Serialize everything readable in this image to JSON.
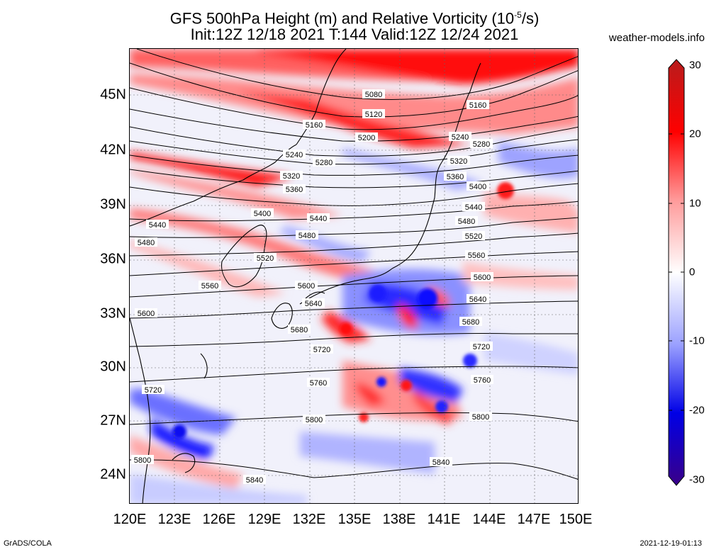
{
  "title": {
    "main": "GFS 500hPa Height (m) and Relative Vorticity (10",
    "exp": "-5",
    "unit": "/s)",
    "line2": "Init:12Z 12/18 2021 T:144 Valid:12Z 12/24 2021"
  },
  "brand": "weather-models.info",
  "footer": {
    "left": "GrADS/COLA",
    "right": "2021-12-19-01:13"
  },
  "lat_labels": [
    "45N",
    "42N",
    "39N",
    "36N",
    "33N",
    "30N",
    "27N",
    "24N"
  ],
  "lon_labels": [
    "120E",
    "123E",
    "126E",
    "129E",
    "132E",
    "135E",
    "138E",
    "141E",
    "144E",
    "147E",
    "150E"
  ],
  "colorbar": {
    "labels": [
      "30",
      "20",
      "10",
      "0",
      "-10",
      "-20",
      "-30"
    ],
    "colors": [
      "#b81c1c",
      "#ff0000",
      "#ff9a9a",
      "#ffffff",
      "#9aa0ff",
      "#0000e6",
      "#3a0088"
    ]
  },
  "contours": [
    {
      "label": "5080",
      "at": [
        [
          526,
          132
        ]
      ]
    },
    {
      "label": "5120",
      "at": [
        [
          526,
          160
        ]
      ]
    },
    {
      "label": "5160",
      "at": [
        [
          442,
          175
        ],
        [
          673,
          147
        ]
      ]
    },
    {
      "label": "5200",
      "at": [
        [
          516,
          193
        ]
      ]
    },
    {
      "label": "5240",
      "at": [
        [
          414,
          217
        ],
        [
          648,
          192
        ]
      ]
    },
    {
      "label": "5280",
      "at": [
        [
          456,
          228
        ],
        [
          678,
          202
        ]
      ]
    },
    {
      "label": "5320",
      "at": [
        [
          410,
          247
        ],
        [
          646,
          226
        ]
      ]
    },
    {
      "label": "5360",
      "at": [
        [
          414,
          266
        ],
        [
          641,
          248
        ]
      ]
    },
    {
      "label": "5400",
      "at": [
        [
          369,
          300
        ],
        [
          673,
          262
        ]
      ]
    },
    {
      "label": "5440",
      "at": [
        [
          221,
          316
        ],
        [
          448,
          307
        ],
        [
          667,
          291
        ]
      ]
    },
    {
      "label": "5480",
      "at": [
        [
          205,
          341
        ],
        [
          432,
          331
        ],
        [
          657,
          311
        ]
      ]
    },
    {
      "label": "5520",
      "at": [
        [
          373,
          363
        ],
        [
          667,
          332
        ]
      ]
    },
    {
      "label": "5560",
      "at": [
        [
          295,
          402
        ],
        [
          671,
          359
        ]
      ]
    },
    {
      "label": "5600",
      "at": [
        [
          205,
          441
        ],
        [
          431,
          402
        ],
        [
          679,
          390
        ]
      ]
    },
    {
      "label": "5640",
      "at": [
        [
          441,
          427
        ],
        [
          673,
          421
        ]
      ]
    },
    {
      "label": "5680",
      "at": [
        [
          421,
          464
        ],
        [
          663,
          453
        ]
      ]
    },
    {
      "label": "5720",
      "at": [
        [
          215,
          549
        ],
        [
          453,
          492
        ],
        [
          678,
          488
        ]
      ]
    },
    {
      "label": "5760",
      "at": [
        [
          448,
          539
        ],
        [
          679,
          535
        ]
      ]
    },
    {
      "label": "5800",
      "at": [
        [
          200,
          648
        ],
        [
          442,
          591
        ],
        [
          677,
          587
        ]
      ]
    },
    {
      "label": "5840",
      "at": [
        [
          358,
          676
        ],
        [
          621,
          651
        ]
      ]
    }
  ]
}
